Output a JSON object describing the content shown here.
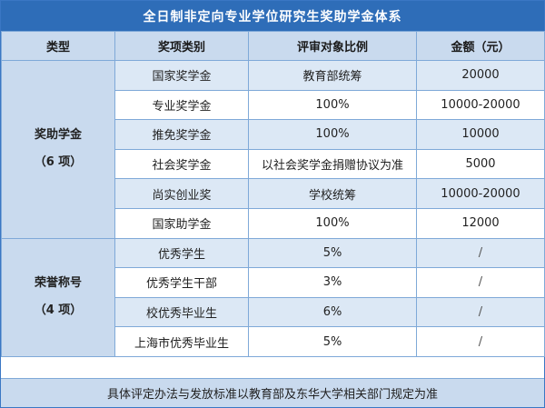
{
  "title": "全日制非定向专业学位研究生奖助学金体系",
  "headers": [
    "类型",
    "奖项类别",
    "评审对象比例",
    "金额（元）"
  ],
  "groups": [
    {
      "name": "奖助学金",
      "count": "（6 项）",
      "rows": [
        {
          "category": "国家奖学金",
          "ratio": "教育部统筹",
          "amount": "20000"
        },
        {
          "category": "专业奖学金",
          "ratio": "100%",
          "amount": "10000-20000"
        },
        {
          "category": "推免奖学金",
          "ratio": "100%",
          "amount": "10000"
        },
        {
          "category": "社会奖学金",
          "ratio": "以社会奖学金捐赠协议为准",
          "amount": "5000"
        },
        {
          "category": "尚实创业奖",
          "ratio": "学校统筹",
          "amount": "10000-20000"
        },
        {
          "category": "国家助学金",
          "ratio": "100%",
          "amount": "12000"
        }
      ]
    },
    {
      "name": "荣誉称号",
      "count": "（4 项）",
      "rows": [
        {
          "category": "优秀学生",
          "ratio": "5%",
          "amount": "/"
        },
        {
          "category": "优秀学生干部",
          "ratio": "3%",
          "amount": "/"
        },
        {
          "category": "校优秀毕业生",
          "ratio": "6%",
          "amount": "/"
        },
        {
          "category": "上海市优秀毕业生",
          "ratio": "5%",
          "amount": "/"
        }
      ]
    }
  ],
  "footer": "具体评定办法与发放标准以教育部及东华大学相关部门规定为准"
}
